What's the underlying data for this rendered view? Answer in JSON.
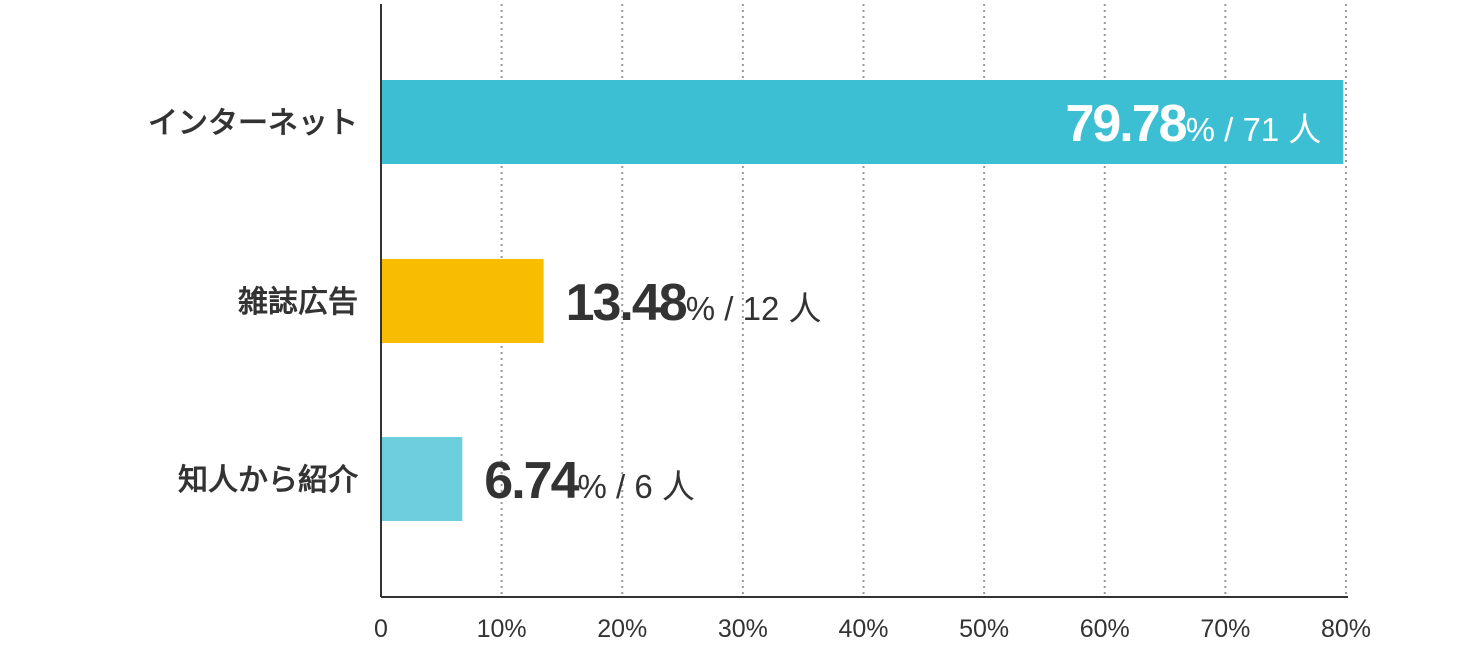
{
  "chart_data": {
    "type": "bar",
    "orientation": "horizontal",
    "categories": [
      "インターネット",
      "雑誌広告",
      "知人から紹介"
    ],
    "values": [
      79.78,
      13.48,
      6.74
    ],
    "counts": [
      71,
      12,
      6
    ],
    "value_suffix": "%",
    "separator": "/",
    "count_unit": "人",
    "bar_colors": [
      "#3dbfd3",
      "#f9bd00",
      "#6dcedd"
    ],
    "label_colors": [
      "#ffffff",
      "#333333",
      "#333333"
    ],
    "label_inside": [
      true,
      false,
      false
    ],
    "xlim": [
      0,
      80
    ],
    "x_ticks": [
      {
        "value": 0,
        "label": "0"
      },
      {
        "value": 10,
        "label": "10%"
      },
      {
        "value": 20,
        "label": "20%"
      },
      {
        "value": 30,
        "label": "30%"
      },
      {
        "value": 40,
        "label": "40%"
      },
      {
        "value": 50,
        "label": "50%"
      },
      {
        "value": 60,
        "label": "60%"
      },
      {
        "value": 70,
        "label": "70%"
      },
      {
        "value": 80,
        "label": "80%"
      }
    ],
    "grid": true,
    "grid_style": "dotted",
    "title": "",
    "xlabel": "",
    "ylabel": ""
  }
}
